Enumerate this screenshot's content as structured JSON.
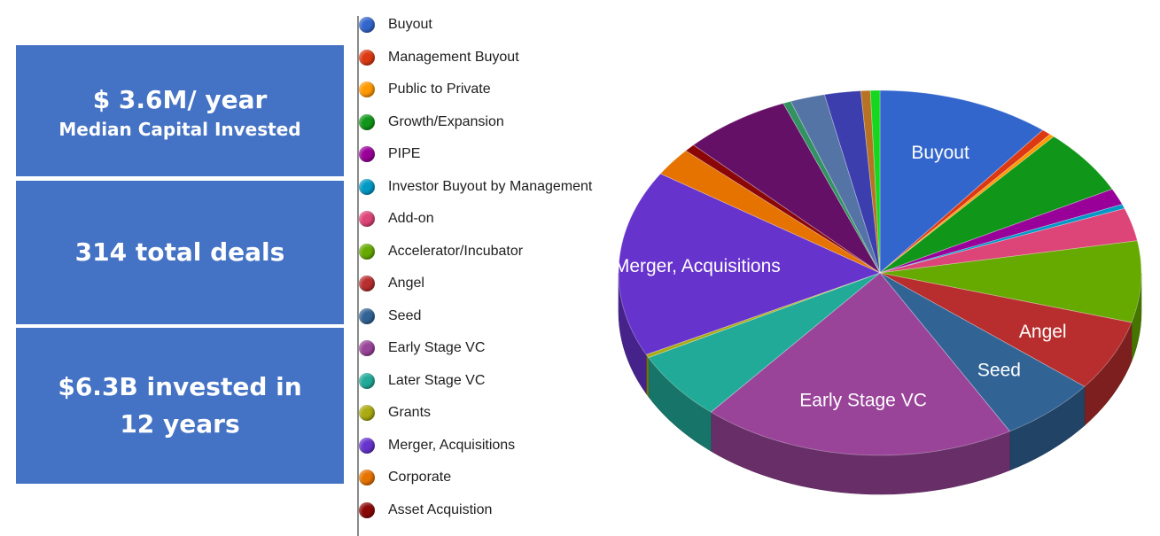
{
  "kpis": {
    "median_capital": {
      "value": "$ 3.6M/ year",
      "caption": "Median Capital Invested"
    },
    "total_deals": {
      "value": "314 total deals"
    },
    "invested": {
      "value": "$6.3B invested in 12 years"
    }
  },
  "chart_data": {
    "type": "pie",
    "title": "",
    "legend_position": "left",
    "slices": [
      {
        "label": "Buyout",
        "value": 11.0,
        "color": "#3366cc",
        "show_label": true
      },
      {
        "label": "Management Buyout",
        "value": 0.6,
        "color": "#dc3912",
        "show_label": false
      },
      {
        "label": "Public to Private",
        "value": 0.3,
        "color": "#ff9900",
        "show_label": false
      },
      {
        "label": "Growth/Expansion",
        "value": 6.0,
        "color": "#109618",
        "show_label": false
      },
      {
        "label": "PIPE",
        "value": 1.5,
        "color": "#990099",
        "show_label": false
      },
      {
        "label": "Investor Buyout by Management",
        "value": 0.4,
        "color": "#0099c6",
        "show_label": false
      },
      {
        "label": "Add-on",
        "value": 3.0,
        "color": "#dd4477",
        "show_label": false
      },
      {
        "label": "Accelerator/Incubator",
        "value": 7.4,
        "color": "#66aa00",
        "show_label": false
      },
      {
        "label": "Angel",
        "value": 6.5,
        "color": "#b82e2e",
        "show_label": true
      },
      {
        "label": "Seed",
        "value": 6.2,
        "color": "#316395",
        "show_label": true
      },
      {
        "label": "Early Stage VC",
        "value": 20.0,
        "color": "#994499",
        "show_label": true
      },
      {
        "label": "Later Stage VC",
        "value": 6.3,
        "color": "#22aa99",
        "show_label": false
      },
      {
        "label": "Grants",
        "value": 0.3,
        "color": "#aaaa11",
        "show_label": false
      },
      {
        "label": "Merger, Acquisitions",
        "value": 17.0,
        "color": "#6633cc",
        "show_label": true
      },
      {
        "label": "Corporate",
        "value": 2.6,
        "color": "#e67300",
        "show_label": false
      },
      {
        "label": "Asset Acquistion",
        "value": 0.7,
        "color": "#8b0707",
        "show_label": false
      },
      {
        "label": "",
        "value": 6.8,
        "color": "#651067",
        "show_label": false
      },
      {
        "label": "",
        "value": 0.5,
        "color": "#329262",
        "show_label": false
      },
      {
        "label": "",
        "value": 2.2,
        "color": "#5574a6",
        "show_label": false
      },
      {
        "label": "",
        "value": 2.3,
        "color": "#3b3eac",
        "show_label": false
      },
      {
        "label": "",
        "value": 0.6,
        "color": "#b77322",
        "show_label": false
      },
      {
        "label": "",
        "value": 0.6,
        "color": "#16d620",
        "show_label": false
      }
    ]
  }
}
